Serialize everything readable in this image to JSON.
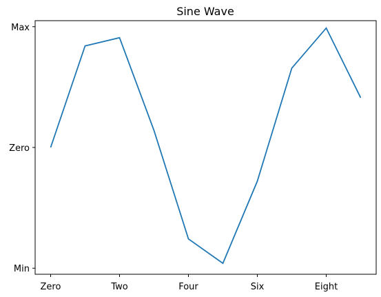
{
  "chart_data": {
    "type": "line",
    "title": "Sine Wave",
    "xlabel": "",
    "ylabel": "",
    "x": [
      0,
      1,
      2,
      3,
      4,
      5,
      6,
      7,
      8,
      9
    ],
    "y": [
      0,
      0.841,
      0.909,
      0.141,
      -0.757,
      -0.959,
      -0.279,
      0.657,
      0.989,
      0.412
    ],
    "xlim": [
      -0.45,
      9.45
    ],
    "ylim": [
      -1.05,
      1.05
    ],
    "x_ticks": [
      {
        "value": 0,
        "label": "Zero"
      },
      {
        "value": 2,
        "label": "Two"
      },
      {
        "value": 4,
        "label": "Four"
      },
      {
        "value": 6,
        "label": "Six"
      },
      {
        "value": 8,
        "label": "Eight"
      }
    ],
    "y_ticks": [
      {
        "value": -1,
        "label": "Min"
      },
      {
        "value": 0,
        "label": "Zero"
      },
      {
        "value": 1,
        "label": "Max"
      }
    ],
    "grid": false,
    "line_color": "#1f77b4"
  }
}
